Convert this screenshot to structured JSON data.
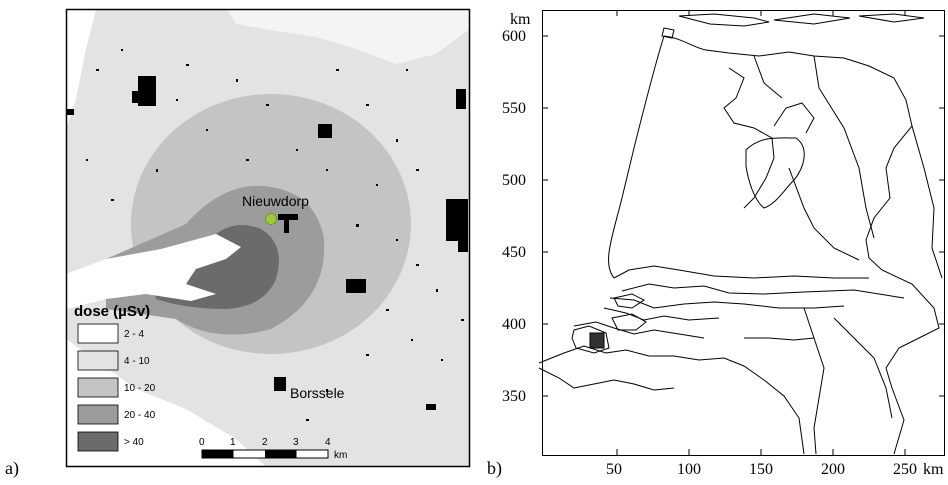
{
  "panel_a": {
    "label": "a)",
    "places": [
      {
        "name": "Nieuwdorp"
      },
      {
        "name": "Borssele"
      }
    ],
    "legend": {
      "title": "dose (µSv)",
      "classes": [
        {
          "label": "2 - 4",
          "color": "#ffffff"
        },
        {
          "label": "4 - 10",
          "color": "#e3e3e3"
        },
        {
          "label": "10 - 20",
          "color": "#c4c4c4"
        },
        {
          "label": "20 - 40",
          "color": "#9c9c9c"
        },
        {
          "label": "> 40",
          "color": "#6b6b6b"
        }
      ]
    },
    "scalebar": {
      "ticks": [
        "0",
        "1",
        "2",
        "3",
        "4"
      ],
      "unit": "km"
    },
    "source_marker_color": "#9acd32"
  },
  "panel_b": {
    "label": "b)",
    "y_axis": {
      "unit": "km",
      "ticks": [
        "600",
        "550",
        "500",
        "450",
        "400",
        "350"
      ]
    },
    "x_axis": {
      "unit": "km",
      "ticks": [
        "50",
        "100",
        "150",
        "200",
        "250"
      ]
    }
  }
}
